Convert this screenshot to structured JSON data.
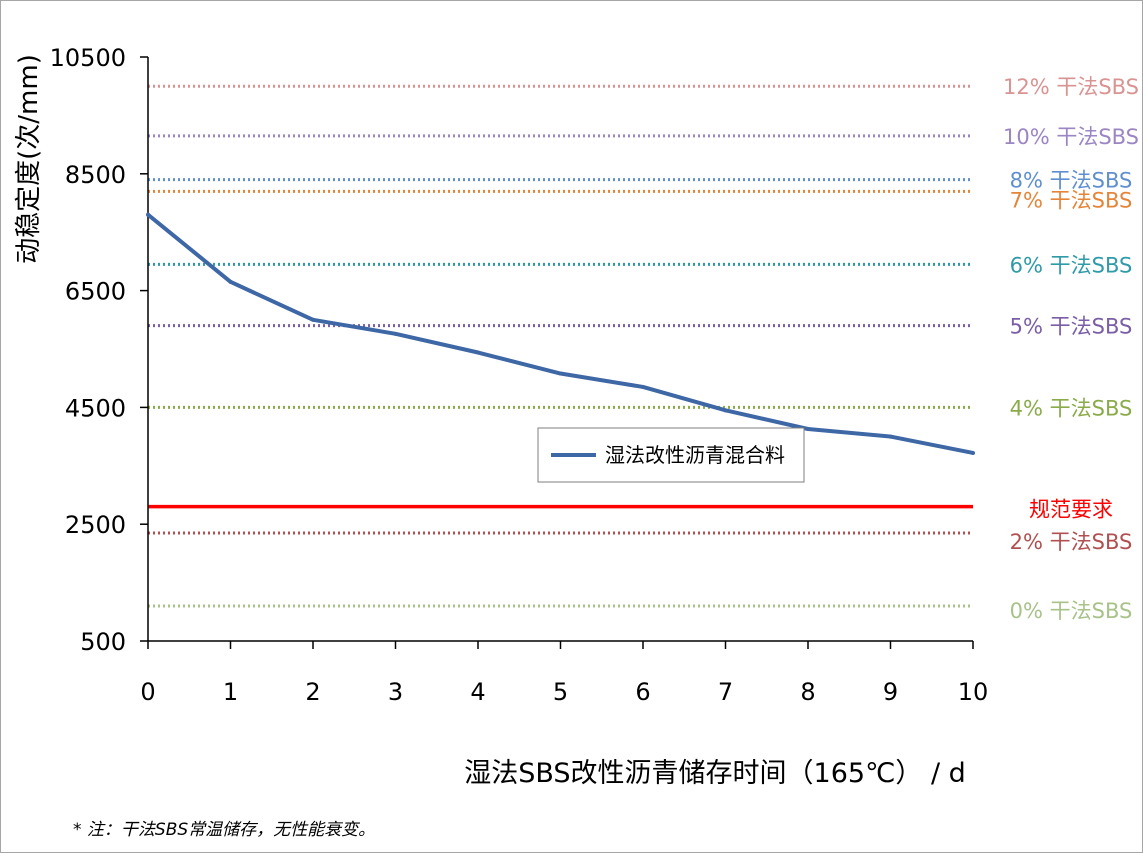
{
  "chart_data": {
    "type": "line",
    "ylabel": "动稳定度(次/mm)",
    "xlabel": "湿法SBS改性沥青储存时间（165℃） / d",
    "note": "* 注：干法SBS常温储存，无性能衰变。",
    "ylim": [
      500,
      10500
    ],
    "y_ticks": [
      500,
      2500,
      4500,
      6500,
      8500,
      10500
    ],
    "xlim": [
      0,
      10
    ],
    "x": [
      0,
      1,
      2,
      3,
      4,
      5,
      6,
      7,
      8,
      9,
      10
    ],
    "legend_position": "center-right",
    "series": [
      {
        "name": "湿法改性沥青混合料",
        "color": "#3e67a5",
        "values": [
          7800,
          6650,
          6000,
          5760,
          5440,
          5080,
          4850,
          4450,
          4130,
          4000,
          3720
        ]
      }
    ],
    "reference_lines": [
      {
        "label": "12% 干法SBS",
        "value": 10000,
        "color": "#d99393"
      },
      {
        "label": "10% 干法SBS",
        "value": 9150,
        "color": "#9b86c4"
      },
      {
        "label": "8% 干法SBS",
        "value": 8400,
        "color": "#5f8fcf"
      },
      {
        "label": "7% 干法SBS",
        "value": 8200,
        "color": "#e4853a"
      },
      {
        "label": "6% 干法SBS",
        "value": 6950,
        "color": "#2f9aa8"
      },
      {
        "label": "5% 干法SBS",
        "value": 5900,
        "color": "#7a5ea6"
      },
      {
        "label": "4% 干法SBS",
        "value": 4500,
        "color": "#8aab4a"
      },
      {
        "label": "规范要求",
        "value": 2800,
        "color": "#ff0000",
        "style": "solid"
      },
      {
        "label": "2% 干法SBS",
        "value": 2350,
        "color": "#b05050"
      },
      {
        "label": "0% 干法SBS",
        "value": 1100,
        "color": "#a8c28a"
      }
    ]
  }
}
